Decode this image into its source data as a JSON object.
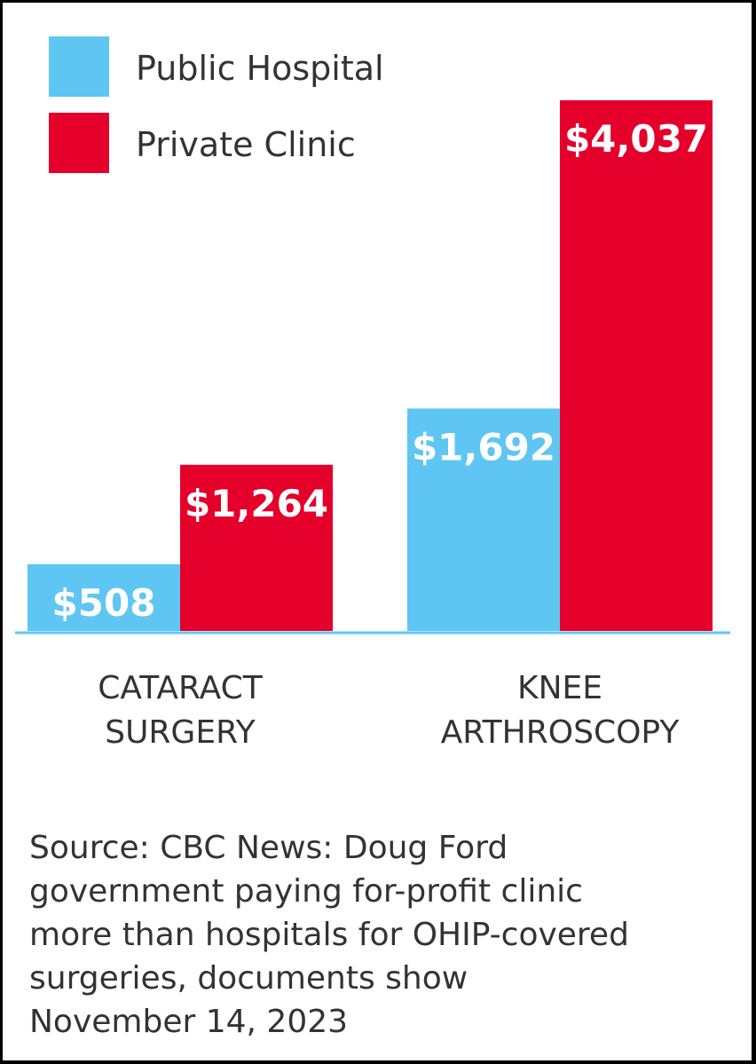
{
  "chart_data": {
    "type": "bar",
    "categories": [
      "CATARACT SURGERY",
      "KNEE ARTHROSCOPY"
    ],
    "category_lines": [
      [
        "CATARACT",
        "SURGERY"
      ],
      [
        "KNEE",
        "ARTHROSCOPY"
      ]
    ],
    "series": [
      {
        "name": "Public Hospital",
        "color": "#5fc6f3",
        "values": [
          508,
          1692
        ],
        "labels": [
          "$508",
          "$1,692"
        ]
      },
      {
        "name": "Private Clinic",
        "color": "#e4002b",
        "values": [
          1264,
          4037
        ],
        "labels": [
          "$1,264",
          "$4,037"
        ]
      }
    ],
    "ylim": [
      0,
      4037
    ],
    "legend": "top-left",
    "grid": false,
    "baseline_color": "#5fc6f3"
  },
  "source": {
    "lines": [
      "Source: CBC News: Doug Ford",
      "government paying for-profit clinic",
      "more than hospitals for OHIP-covered",
      "surgeries, documents show",
      "November 14, 2023"
    ]
  }
}
